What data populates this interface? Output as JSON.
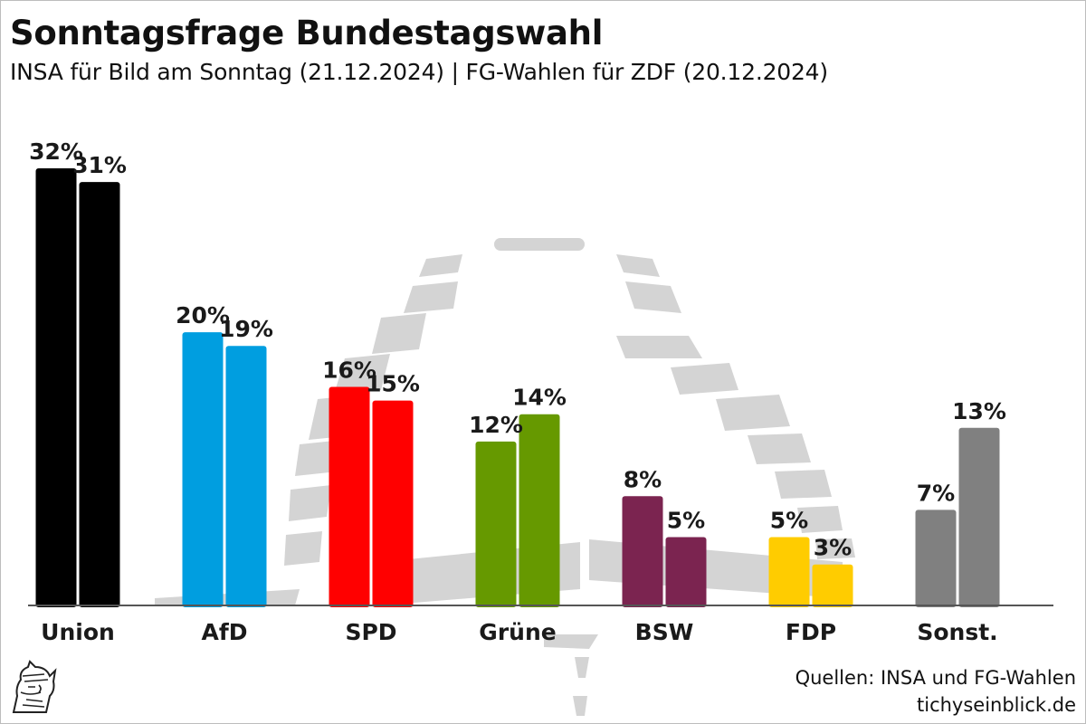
{
  "title": "Sonntagsfrage Bundestagswahl",
  "subtitle": "INSA für Bild am Sonntag (21.12.2024) | FG-Wahlen für ZDF (20.12.2024)",
  "sources": {
    "line1": "Quellen: INSA und FG-Wahlen",
    "line2": "tichyseinblick.de"
  },
  "logo": {
    "icon": "hermes-head-logo-icon"
  },
  "background_icon": "reichstag-dome-watermark-icon",
  "chart_data": {
    "type": "bar",
    "categories": [
      "Union",
      "AfD",
      "SPD",
      "Grüne",
      "BSW",
      "FDP",
      "Sonst."
    ],
    "colors": [
      "#000000",
      "#009ee0",
      "#ff0000",
      "#669900",
      "#7b2450",
      "#ffcc00",
      "#808080"
    ],
    "series": [
      {
        "values": [
          32,
          20,
          16,
          12,
          8,
          5,
          7
        ]
      },
      {
        "values": [
          31,
          19,
          15,
          14,
          5,
          3,
          13
        ]
      }
    ],
    "value_suffix": "%",
    "ylim": [
      0,
      32
    ],
    "grid": false,
    "legend": "none"
  }
}
